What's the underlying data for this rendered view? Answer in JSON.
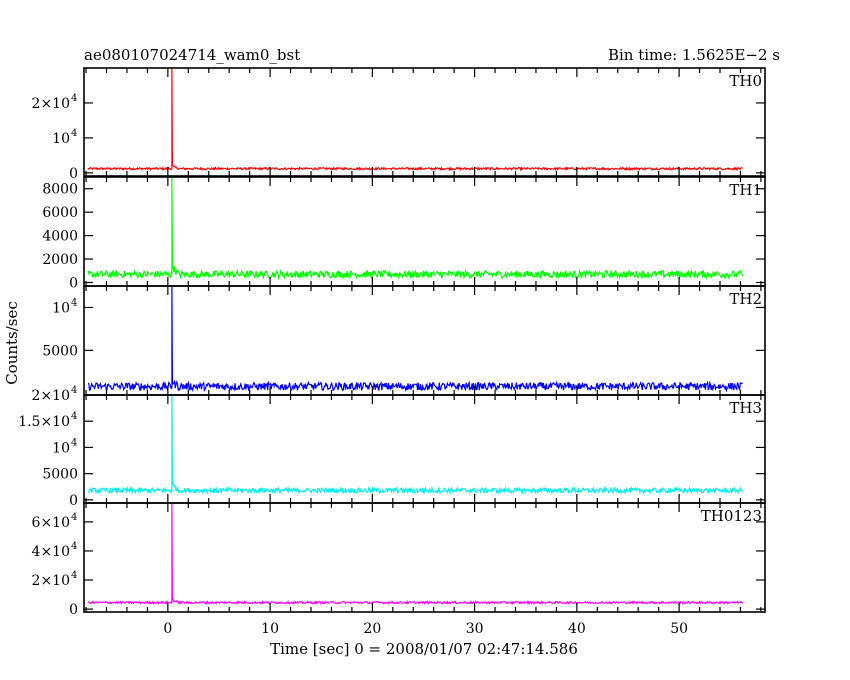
{
  "chart_data": {
    "type": "line",
    "title": "ae080107024714_wam0_bst",
    "bin_time": "Bin time: 1.5625E−2 s",
    "xlabel": "Time [sec] 0 = 2008/01/07 02:47:14.586",
    "ylabel": "Counts/sec",
    "xlim": [
      -8.2,
      58.4
    ],
    "x_ticks": [
      0,
      10,
      20,
      30,
      40,
      50
    ],
    "data_x_range": [
      -7.8,
      56.2
    ],
    "burst_time": 0.4,
    "grid": false,
    "panels": [
      {
        "name": "TH0",
        "color": "#ff0000",
        "ylim": [
          -900,
          30000
        ],
        "y_ticks": [
          {
            "v": 0,
            "m": "0",
            "e": ""
          },
          {
            "v": 10000,
            "m": "10",
            "e": "4"
          },
          {
            "v": 20000,
            "m": "2×10",
            "e": "4"
          }
        ],
        "baseline": 1200,
        "noise": 300,
        "peak": 30000,
        "tail": 900
      },
      {
        "name": "TH1",
        "color": "#00ff00",
        "ylim": [
          -300,
          9000
        ],
        "y_ticks": [
          {
            "v": 0,
            "m": "0",
            "e": ""
          },
          {
            "v": 2000,
            "m": "2000",
            "e": ""
          },
          {
            "v": 4000,
            "m": "4000",
            "e": ""
          },
          {
            "v": 6000,
            "m": "6000",
            "e": ""
          },
          {
            "v": 8000,
            "m": "8000",
            "e": ""
          }
        ],
        "baseline": 700,
        "noise": 300,
        "peak": 9000,
        "tail": 900
      },
      {
        "name": "TH2",
        "color": "#0000ff",
        "ylim": [
          -200,
          12500
        ],
        "y_ticks": [
          {
            "v": 5000,
            "m": "5000",
            "e": ""
          },
          {
            "v": 10000,
            "m": "10",
            "e": "4"
          }
        ],
        "baseline": 800,
        "noise": 450,
        "peak": 12500,
        "tail": 600
      },
      {
        "name": "TH3",
        "color": "#00eeee",
        "ylim": [
          -600,
          20000
        ],
        "y_ticks": [
          {
            "v": 0,
            "m": "0",
            "e": ""
          },
          {
            "v": 5000,
            "m": "5000",
            "e": ""
          },
          {
            "v": 10000,
            "m": "10",
            "e": "4"
          },
          {
            "v": 15000,
            "m": "1.5×10",
            "e": "4"
          },
          {
            "v": 20000,
            "m": "2×10",
            "e": "4"
          }
        ],
        "baseline": 1800,
        "noise": 450,
        "peak": 20000,
        "tail": 1500
      },
      {
        "name": "TH0123",
        "color": "#ff00ff",
        "ylim": [
          -2000,
          73000
        ],
        "y_ticks": [
          {
            "v": 0,
            "m": "0",
            "e": ""
          },
          {
            "v": 20000,
            "m": "2×10",
            "e": "4"
          },
          {
            "v": 40000,
            "m": "4×10",
            "e": "4"
          },
          {
            "v": 60000,
            "m": "6×10",
            "e": "4"
          }
        ],
        "baseline": 4500,
        "noise": 700,
        "peak": 73000,
        "tail": 2500
      }
    ]
  }
}
